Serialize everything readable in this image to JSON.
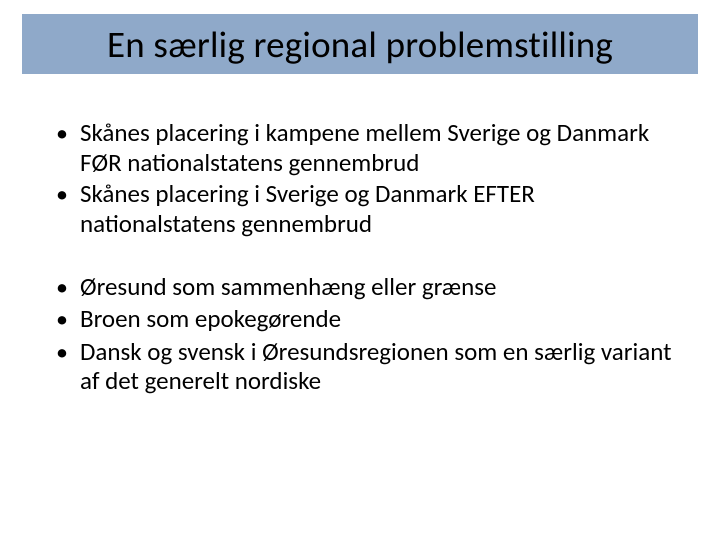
{
  "slide": {
    "title": "En særlig regional problemstilling",
    "title_bar_color": "#8fa9c9",
    "background_color": "#ffffff",
    "text_color": "#000000",
    "title_fontsize": 37,
    "body_fontsize": 25,
    "bullet_char": "•",
    "groups": [
      {
        "items": [
          "Skånes placering i kampene mellem Sverige og Danmark FØR nationalstatens gennembrud",
          "Skånes placering i Sverige og Danmark EFTER nationalstatens gennembrud"
        ]
      },
      {
        "items": [
          "Øresund som sammenhæng eller grænse",
          "Broen som epokegørende",
          "Dansk og svensk i Øresundsregionen som en særlig variant af det generelt nordiske"
        ]
      }
    ]
  }
}
